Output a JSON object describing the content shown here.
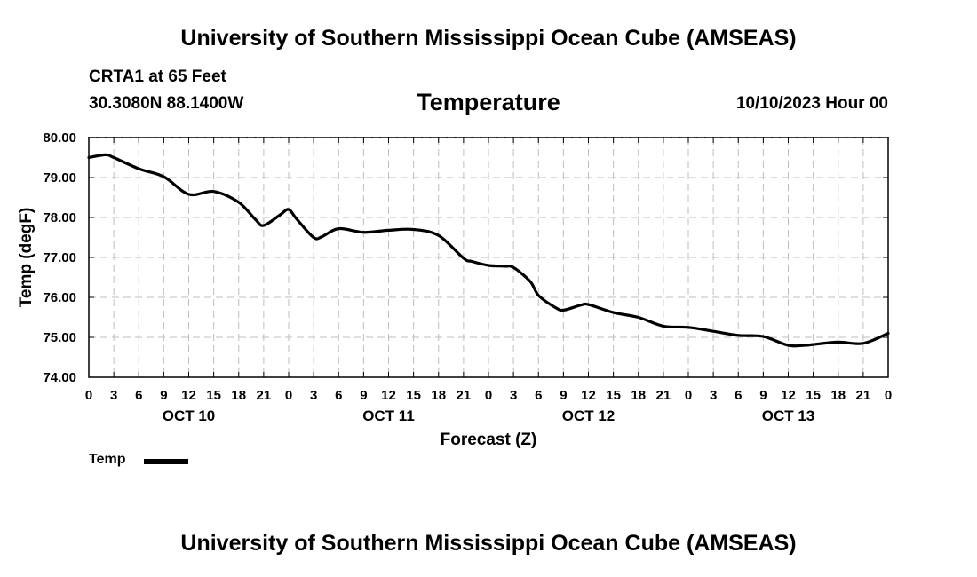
{
  "header": {
    "title": "University of Southern Mississippi Ocean Cube (AMSEAS)",
    "station": "CRTA1 at 65 Feet",
    "coords": "30.3080N  88.1400W",
    "date": "10/10/2023 Hour 00"
  },
  "footer": {
    "title": "University of Southern Mississippi Ocean Cube (AMSEAS)"
  },
  "chart_data": {
    "type": "line",
    "title": "Temperature",
    "xlabel": "Forecast (Z)",
    "ylabel": "Temp (degF)",
    "ylim": [
      74.0,
      80.0
    ],
    "xlim_hours": [
      0,
      96
    ],
    "x_tick_step_hours": 3,
    "y_ticks": [
      "74.00",
      "75.00",
      "76.00",
      "77.00",
      "78.00",
      "79.00",
      "80.00"
    ],
    "x_tick_labels": [
      "0",
      "3",
      "6",
      "9",
      "12",
      "15",
      "18",
      "21",
      "0",
      "3",
      "6",
      "9",
      "12",
      "15",
      "18",
      "21",
      "0",
      "3",
      "6",
      "9",
      "12",
      "15",
      "18",
      "21",
      "0",
      "3",
      "6",
      "9",
      "12",
      "15",
      "18",
      "21",
      "0"
    ],
    "day_labels": [
      {
        "label": "OCT 10",
        "hour": 12
      },
      {
        "label": "OCT 11",
        "hour": 36
      },
      {
        "label": "OCT 12",
        "hour": 60
      },
      {
        "label": "OCT 13",
        "hour": 84
      }
    ],
    "grid": true,
    "legend_position": "bottom-left",
    "series": [
      {
        "name": "Temp",
        "color": "#000000",
        "x": [
          0,
          2,
          3,
          6,
          9,
          12,
          15,
          18,
          20,
          21,
          23,
          24,
          25,
          27,
          28,
          30,
          33,
          36,
          39,
          42,
          45,
          46,
          48,
          50,
          51,
          53,
          54,
          56,
          57,
          59,
          60,
          63,
          66,
          69,
          72,
          75,
          78,
          81,
          84,
          86,
          87,
          90,
          93,
          96
        ],
        "values": [
          79.5,
          79.57,
          79.5,
          79.22,
          79.02,
          78.58,
          78.65,
          78.38,
          77.95,
          77.8,
          78.07,
          78.2,
          77.95,
          77.5,
          77.52,
          77.72,
          77.63,
          77.68,
          77.7,
          77.55,
          76.98,
          76.9,
          76.8,
          76.78,
          76.75,
          76.4,
          76.05,
          75.75,
          75.68,
          75.8,
          75.82,
          75.62,
          75.5,
          75.28,
          75.25,
          75.15,
          75.05,
          75.02,
          74.8,
          74.8,
          74.82,
          74.88,
          74.85,
          75.1
        ]
      }
    ]
  },
  "legend": {
    "label": "Temp"
  }
}
